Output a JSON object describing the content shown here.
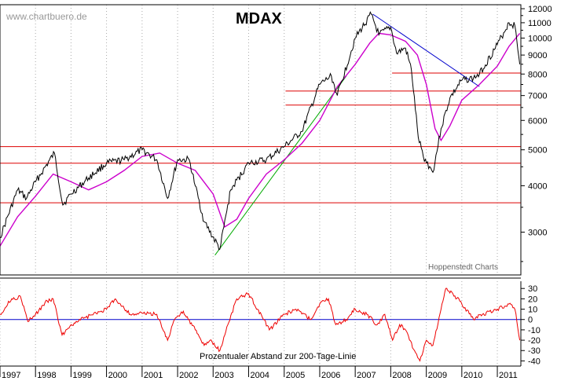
{
  "watermark": "www.chartbuero.de",
  "credit": "Hoppenstedt Charts",
  "chart_data": [
    {
      "type": "line",
      "title": "MDAX",
      "y_scale": "log",
      "ylim": [
        2300,
        12300
      ],
      "y_ticks": [
        3000,
        4000,
        5000,
        6000,
        7000,
        8000,
        9000,
        10000,
        11000,
        12000
      ],
      "y_tick_labels": [
        "3000",
        "4000",
        "5000",
        "6000",
        "7000",
        "8000",
        "9000",
        "10000",
        "11000",
        "12000"
      ],
      "xlim": [
        "1997-01-01",
        "2011-08-31"
      ],
      "x_tick_labels": [
        "1997",
        "1998",
        "1999",
        "2000",
        "2001",
        "2002",
        "2003",
        "2004",
        "2005",
        "2006",
        "2007",
        "2008",
        "2009",
        "2010",
        "2011"
      ],
      "grid": "vertical dotted at year boundaries",
      "series": [
        {
          "role": "index",
          "color": "#000000",
          "x": [
            "1997-01-01",
            "1997-07-01",
            "1997-10-01",
            "1998-01-01",
            "1998-07-15",
            "1998-10-08",
            "1999-01-01",
            "1999-07-01",
            "2000-01-01",
            "2000-07-01",
            "2001-01-01",
            "2001-06-01",
            "2001-09-20",
            "2002-01-01",
            "2002-05-01",
            "2002-07-01",
            "2002-10-01",
            "2003-03-12",
            "2003-07-01",
            "2004-01-01",
            "2004-07-01",
            "2005-01-01",
            "2005-07-01",
            "2006-01-01",
            "2006-05-01",
            "2006-07-01",
            "2007-01-01",
            "2007-06-15",
            "2007-09-01",
            "2008-01-01",
            "2008-03-01",
            "2008-06-01",
            "2008-08-01",
            "2008-10-10",
            "2008-12-01",
            "2009-03-09",
            "2009-06-01",
            "2009-09-01",
            "2010-01-01",
            "2010-05-01",
            "2010-07-01",
            "2011-01-01",
            "2011-05-01",
            "2011-07-01",
            "2011-08-20"
          ],
          "y": [
            2900,
            3900,
            3700,
            4100,
            4900,
            3550,
            3800,
            4200,
            4600,
            4700,
            5000,
            4700,
            3700,
            4700,
            4700,
            4000,
            3200,
            2700,
            3900,
            4600,
            4700,
            5100,
            5600,
            7500,
            7900,
            7000,
            10000,
            11600,
            10200,
            10700,
            9100,
            9400,
            8200,
            5400,
            4800,
            4350,
            5700,
            6900,
            7700,
            7800,
            8000,
            9600,
            11000,
            10800,
            8500
          ]
        },
        {
          "role": "200-day moving average",
          "color": "#cc00cc",
          "x": [
            "1997-01-01",
            "1997-07-01",
            "1998-01-01",
            "1998-07-01",
            "1999-01-01",
            "1999-07-01",
            "2000-01-01",
            "2000-07-01",
            "2001-01-01",
            "2001-07-01",
            "2002-01-01",
            "2002-07-01",
            "2003-01-01",
            "2003-05-01",
            "2003-09-01",
            "2004-01-01",
            "2004-07-01",
            "2005-01-01",
            "2005-07-01",
            "2006-01-01",
            "2006-07-01",
            "2007-01-01",
            "2007-06-01",
            "2007-09-01",
            "2008-01-01",
            "2008-06-01",
            "2008-10-01",
            "2009-01-01",
            "2009-04-01",
            "2009-06-01",
            "2009-09-01",
            "2010-01-01",
            "2010-07-01",
            "2011-01-01",
            "2011-05-01",
            "2011-08-20"
          ],
          "y": [
            2750,
            3300,
            3750,
            4300,
            4100,
            3900,
            4100,
            4400,
            4800,
            4900,
            4600,
            4400,
            3800,
            3100,
            3250,
            3700,
            4300,
            4700,
            5200,
            6000,
            7400,
            8500,
            9700,
            10300,
            10200,
            9800,
            9000,
            7500,
            5700,
            5300,
            5800,
            6800,
            7500,
            8400,
            9500,
            10300
          ]
        }
      ],
      "horizontal_lines": [
        3600,
        4600,
        5100,
        6600,
        7200,
        8050
      ],
      "trend_lines": [
        {
          "color": "#00aa00",
          "from": {
            "x": "2003-01-20",
            "y": 2600
          },
          "to": {
            "x": "2006-10-01",
            "y": 7900
          }
        },
        {
          "color": "#0000cc",
          "from": {
            "x": "2007-07-01",
            "y": 11600
          },
          "to": {
            "x": "2010-07-01",
            "y": 7400
          }
        }
      ]
    },
    {
      "type": "line",
      "title": "Prozentualer Abstand zur 200-Tage-Linie",
      "ylim": [
        -45,
        37
      ],
      "y_ticks": [
        30,
        20,
        10,
        0,
        -10,
        -20,
        -30,
        -40
      ],
      "y_tick_labels": [
        "30",
        "20",
        "10",
        "0",
        "-10",
        "-20",
        "-30",
        "-40"
      ],
      "x_tick_labels": [
        "1997",
        "1998",
        "1999",
        "2000",
        "2001",
        "2002",
        "2003",
        "2004",
        "2005",
        "2006",
        "2007",
        "2008",
        "2009",
        "2010",
        "2011"
      ],
      "zero_line_color": "#0000cc",
      "series": [
        {
          "color": "#ee0000",
          "x": [
            "1997-01-01",
            "1997-05-01",
            "1997-08-01",
            "1997-10-15",
            "1998-01-01",
            "1998-05-01",
            "1998-07-01",
            "1998-10-01",
            "1999-01-01",
            "1999-06-01",
            "2000-01-01",
            "2000-04-01",
            "2000-09-01",
            "2001-01-01",
            "2001-06-01",
            "2001-09-20",
            "2001-12-01",
            "2002-03-01",
            "2002-07-01",
            "2002-10-01",
            "2002-12-01",
            "2003-03-12",
            "2003-06-01",
            "2003-09-01",
            "2004-01-01",
            "2004-04-01",
            "2004-08-01",
            "2005-01-01",
            "2005-05-01",
            "2005-10-01",
            "2006-01-01",
            "2006-04-01",
            "2006-06-15",
            "2006-10-01",
            "2007-01-01",
            "2007-05-01",
            "2007-08-15",
            "2007-11-01",
            "2008-01-20",
            "2008-04-01",
            "2008-06-01",
            "2008-09-01",
            "2008-10-27",
            "2009-01-01",
            "2009-03-09",
            "2009-06-01",
            "2009-07-20",
            "2009-10-01",
            "2010-01-01",
            "2010-05-01",
            "2010-08-01",
            "2011-01-01",
            "2011-05-01",
            "2011-07-01",
            "2011-08-20"
          ],
          "y": [
            5,
            20,
            22,
            -2,
            5,
            18,
            20,
            -15,
            -5,
            2,
            10,
            20,
            5,
            6,
            5,
            -20,
            0,
            8,
            -10,
            -25,
            -20,
            -30,
            -5,
            20,
            25,
            10,
            -10,
            5,
            10,
            0,
            15,
            20,
            -5,
            0,
            10,
            5,
            -5,
            5,
            -20,
            -5,
            -10,
            -30,
            -40,
            -20,
            -25,
            10,
            30,
            25,
            15,
            0,
            5,
            10,
            15,
            10,
            -20
          ]
        }
      ]
    }
  ]
}
